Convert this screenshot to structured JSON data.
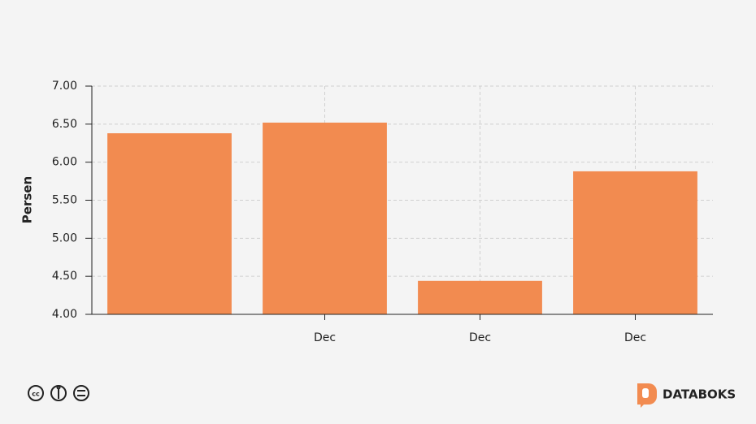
{
  "chart_data": {
    "type": "bar",
    "y_label": "Persen",
    "categories": [
      null,
      "Dec",
      "Dec",
      "Dec"
    ],
    "values": [
      6.38,
      6.52,
      4.44,
      5.88
    ],
    "color": "#f28b50",
    "ylim": [
      4,
      7
    ],
    "yticks": [
      {
        "value": 4,
        "label": "4.00"
      },
      {
        "value": 4.5,
        "label": "4.50"
      },
      {
        "value": 5,
        "label": "5.00"
      },
      {
        "value": 5.5,
        "label": "5.50"
      },
      {
        "value": 6,
        "label": "6.00"
      },
      {
        "value": 6.5,
        "label": "6.50"
      },
      {
        "value": 7,
        "label": "7.00"
      }
    ],
    "grid": true
  },
  "footer": {
    "brand": "DATABOKS"
  }
}
